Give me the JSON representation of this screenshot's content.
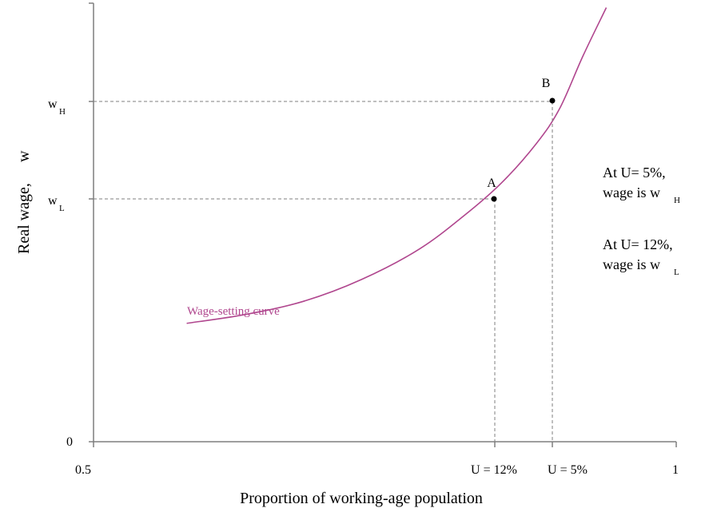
{
  "chart_data": {
    "type": "line",
    "title": "",
    "xlabel": "Proportion of working-age population",
    "ylabel": "Real wage,",
    "ylabel_symbol": "w",
    "xlim": [
      0.5,
      1
    ],
    "x_tick_labels": [
      "0.5",
      "1"
    ],
    "y_origin_label": "0",
    "series": [
      {
        "name": "Wage-setting curve",
        "color": "#b0468e",
        "points": [
          {
            "x": 0.58,
            "y": 0.27
          },
          {
            "x": 0.63,
            "y": 0.29
          },
          {
            "x": 0.68,
            "y": 0.32
          },
          {
            "x": 0.73,
            "y": 0.37
          },
          {
            "x": 0.78,
            "y": 0.44
          },
          {
            "x": 0.82,
            "y": 0.52
          },
          {
            "x": 0.85,
            "y": 0.59
          },
          {
            "x": 0.88,
            "y": 0.68
          },
          {
            "x": 0.9,
            "y": 0.76
          },
          {
            "x": 0.92,
            "y": 0.88
          },
          {
            "x": 0.94,
            "y": 0.99
          }
        ]
      }
    ],
    "points": [
      {
        "label": "A",
        "x": 0.84,
        "y": 0.555,
        "x_label": "U = 12%",
        "y_label": "w",
        "y_sub": "L"
      },
      {
        "label": "B",
        "x": 0.89,
        "y": 0.775,
        "x_label": "U = 5%",
        "y_label": "w",
        "y_sub": "H"
      }
    ],
    "annotations": [
      {
        "line1": "At U= 5%,",
        "line2": "wage is  w",
        "sub": "H"
      },
      {
        "line1": "At U= 12%,",
        "line2": "wage is  w",
        "sub": "L"
      }
    ]
  }
}
